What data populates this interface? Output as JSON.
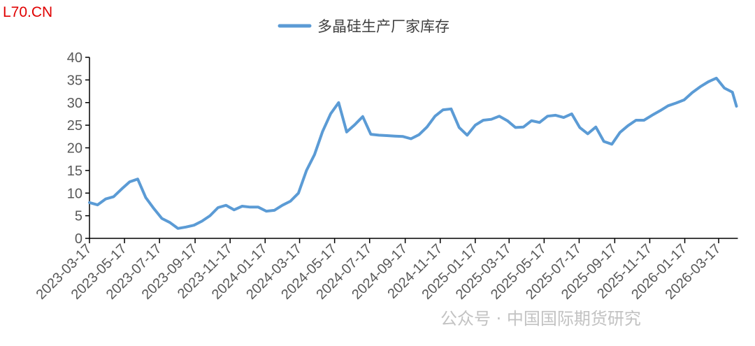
{
  "watermark_top": "L70.CN",
  "watermark_bottom": "公众号 · 中国国际期货研究",
  "chart_data": {
    "type": "line",
    "title": "",
    "xlabel": "",
    "ylabel": "",
    "legend_placement": "top-center",
    "grid": false,
    "ylim": [
      0,
      40
    ],
    "yticks": [
      "0",
      "5",
      "10",
      "15",
      "20",
      "25",
      "30",
      "35",
      "40"
    ],
    "xticks": [
      "2023-03-17",
      "2023-05-17",
      "2023-07-17",
      "2023-09-17",
      "2023-11-17",
      "2024-01-17",
      "2024-03-17",
      "2024-05-17",
      "2024-07-17",
      "2024-09-17",
      "2024-11-17",
      "2025-01-17",
      "2025-03-17",
      "2025-05-17",
      "2025-07-17",
      "2025-09-17",
      "2025-11-17",
      "2026-01-17",
      "2026-03-17"
    ],
    "xlim": [
      "2023-03-17",
      "2026-04-17"
    ],
    "series": [
      {
        "name": "多晶硅生产厂家库存",
        "color": "#5b9bd5",
        "x": [
          "2023-03-17",
          "2023-03-31",
          "2023-04-14",
          "2023-04-28",
          "2023-05-12",
          "2023-05-26",
          "2023-06-09",
          "2023-06-23",
          "2023-07-07",
          "2023-07-21",
          "2023-08-04",
          "2023-08-18",
          "2023-09-01",
          "2023-09-15",
          "2023-09-29",
          "2023-10-13",
          "2023-10-27",
          "2023-11-10",
          "2023-11-24",
          "2023-12-08",
          "2023-12-22",
          "2024-01-05",
          "2024-01-19",
          "2024-02-02",
          "2024-02-16",
          "2024-03-01",
          "2024-03-15",
          "2024-03-29",
          "2024-04-12",
          "2024-04-26",
          "2024-05-10",
          "2024-05-24",
          "2024-06-07",
          "2024-06-21",
          "2024-07-05",
          "2024-07-19",
          "2024-08-02",
          "2024-08-16",
          "2024-08-30",
          "2024-09-13",
          "2024-09-27",
          "2024-10-11",
          "2024-10-25",
          "2024-11-08",
          "2024-11-22",
          "2024-12-06",
          "2024-12-20",
          "2025-01-03",
          "2025-01-17",
          "2025-01-31",
          "2025-02-14",
          "2025-02-28",
          "2025-03-14",
          "2025-03-28",
          "2025-04-11",
          "2025-04-25",
          "2025-05-09",
          "2025-05-23",
          "2025-06-06",
          "2025-06-20",
          "2025-07-04",
          "2025-07-18",
          "2025-08-01",
          "2025-08-15",
          "2025-08-29",
          "2025-09-12",
          "2025-09-26",
          "2025-10-10",
          "2025-10-24",
          "2025-11-07",
          "2025-11-21",
          "2025-12-05",
          "2025-12-19",
          "2026-01-02",
          "2026-01-16",
          "2026-01-30",
          "2026-02-13",
          "2026-02-27",
          "2026-03-13",
          "2026-03-27",
          "2026-04-10",
          "2026-04-17"
        ],
        "values": [
          7.9,
          7.4,
          8.7,
          9.2,
          10.9,
          12.5,
          13.1,
          9.0,
          6.6,
          4.4,
          3.5,
          2.2,
          2.5,
          2.9,
          3.8,
          5.0,
          6.8,
          7.3,
          6.3,
          7.1,
          6.9,
          6.9,
          6.0,
          6.2,
          7.3,
          8.2,
          10.0,
          15.0,
          18.5,
          23.6,
          27.5,
          30.0,
          23.5,
          25.1,
          26.9,
          23.0,
          22.8,
          22.7,
          22.6,
          22.5,
          22.0,
          22.9,
          24.6,
          27.0,
          28.4,
          28.6,
          24.5,
          22.8,
          25.0,
          26.1,
          26.3,
          27.0,
          26.0,
          24.5,
          24.6,
          26.0,
          25.6,
          27.0,
          27.2,
          26.7,
          27.5,
          24.5,
          23.1,
          24.6,
          21.4,
          20.8,
          23.4,
          24.9,
          26.1,
          26.1,
          27.2,
          28.2,
          29.3,
          29.9,
          30.6,
          32.2,
          33.5,
          34.6,
          35.4,
          33.2,
          32.3,
          29.2
        ]
      }
    ]
  }
}
